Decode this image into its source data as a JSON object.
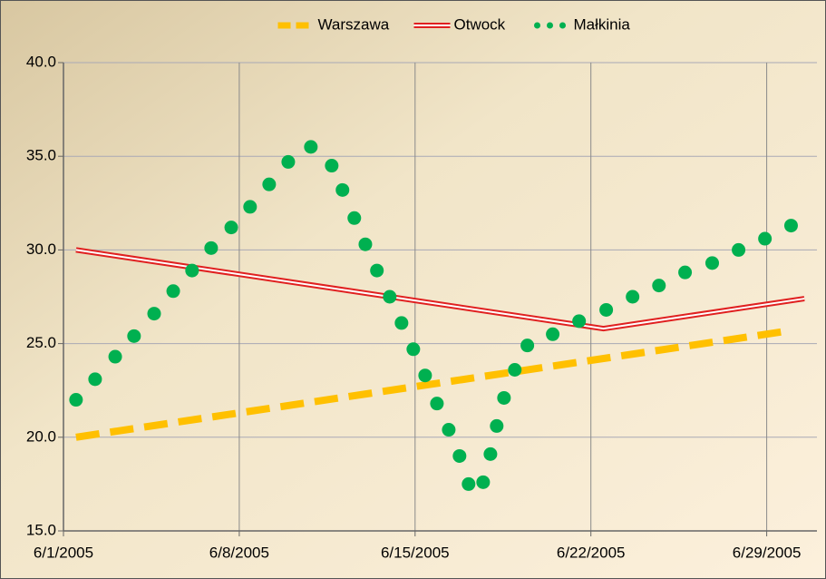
{
  "chart_data": {
    "type": "line",
    "xlim": [
      38504,
      38534
    ],
    "xticks": [
      {
        "value": 38504,
        "label": "6/1/2005"
      },
      {
        "value": 38511,
        "label": "6/8/2005"
      },
      {
        "value": 38518,
        "label": "6/15/2005"
      },
      {
        "value": 38525,
        "label": "6/22/2005"
      },
      {
        "value": 38532,
        "label": "6/29/2005"
      }
    ],
    "ylim": [
      15,
      40
    ],
    "yticks": [
      {
        "value": 15,
        "label": "15.0"
      },
      {
        "value": 20,
        "label": "20.0"
      },
      {
        "value": 25,
        "label": "25.0"
      },
      {
        "value": 30,
        "label": "30.0"
      },
      {
        "value": 35,
        "label": "35.0"
      },
      {
        "value": 40,
        "label": "40.0"
      }
    ],
    "grid": true,
    "legend": "top",
    "series": [
      {
        "name": "Warszawa",
        "color": "#ffc000",
        "style": "dashed",
        "x": [
          38504.5,
          38532.97
        ],
        "values": [
          20.0,
          25.7
        ]
      },
      {
        "name": "Otwock",
        "color": "#e02020",
        "style": "double",
        "x": [
          38504.5,
          38525.5,
          38533.5
        ],
        "values": [
          30.0,
          25.8,
          27.4
        ]
      },
      {
        "name": "Małkinia",
        "color": "#00b050",
        "style": "dots",
        "x": [
          38504.5,
          38505.26,
          38506.06,
          38506.81,
          38507.61,
          38508.37,
          38509.12,
          38509.88,
          38510.68,
          38511.43,
          38512.19,
          38512.95,
          38513.85,
          38514.68,
          38515.11,
          38515.58,
          38516.02,
          38516.48,
          38516.99,
          38517.46,
          38517.93,
          38518.4,
          38518.87,
          38519.34,
          38519.77,
          38520.13,
          38520.71,
          38521.0,
          38521.25,
          38521.54,
          38521.97,
          38522.47,
          38523.48,
          38524.53,
          38525.61,
          38526.66,
          38527.71,
          38528.75,
          38529.83,
          38530.88,
          38531.93,
          38532.97
        ],
        "values": [
          22.0,
          23.1,
          24.3,
          25.4,
          26.6,
          27.8,
          28.9,
          30.1,
          31.2,
          32.3,
          33.5,
          34.7,
          35.5,
          34.5,
          33.2,
          31.7,
          30.3,
          28.9,
          27.5,
          26.1,
          24.7,
          23.3,
          21.8,
          20.4,
          19.0,
          17.5,
          17.6,
          19.1,
          20.6,
          22.1,
          23.6,
          24.9,
          25.5,
          26.2,
          26.8,
          27.5,
          28.1,
          28.8,
          29.3,
          30.0,
          30.6,
          31.3
        ]
      }
    ]
  }
}
